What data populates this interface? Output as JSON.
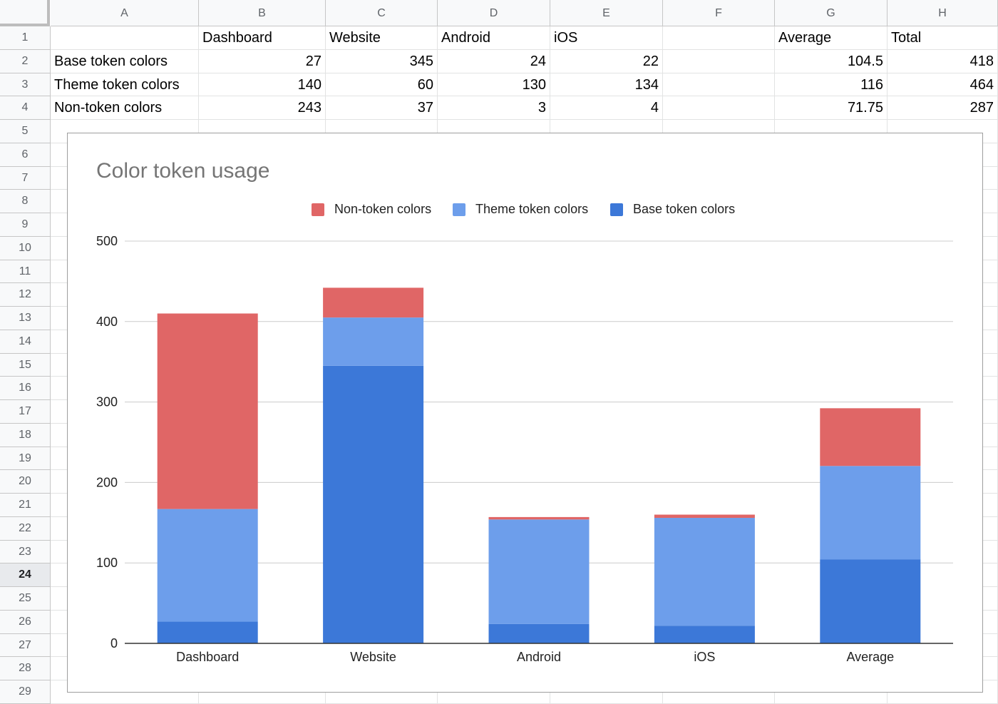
{
  "sheet": {
    "columns": [
      "A",
      "B",
      "C",
      "D",
      "E",
      "F",
      "G",
      "H"
    ],
    "rows": [
      "1",
      "2",
      "3",
      "4",
      "5",
      "6",
      "7",
      "8",
      "9",
      "10",
      "11",
      "12",
      "13",
      "14",
      "15",
      "16",
      "17",
      "18",
      "19",
      "20",
      "21",
      "22",
      "23",
      "24",
      "25",
      "26",
      "27",
      "28",
      "29"
    ],
    "selected_row": "24",
    "header_cells": [
      "",
      "Dashboard",
      "Website",
      "Android",
      "iOS",
      "",
      "Average",
      "Total"
    ],
    "data_rows": [
      [
        "Base token colors",
        "27",
        "345",
        "24",
        "22",
        "",
        "104.5",
        "418"
      ],
      [
        "Theme token colors",
        "140",
        "60",
        "130",
        "134",
        "",
        "116",
        "464"
      ],
      [
        "Non-token colors",
        "243",
        "37",
        "3",
        "4",
        "",
        "71.75",
        "287"
      ]
    ]
  },
  "chart_data": {
    "type": "bar",
    "stacked": true,
    "title": "Color token usage",
    "xlabel": "",
    "ylabel": "",
    "categories": [
      "Dashboard",
      "Website",
      "Android",
      "iOS",
      "Average"
    ],
    "series": [
      {
        "name": "Base token colors",
        "color": "#3c78d8",
        "values": [
          27,
          345,
          24,
          22,
          104.5
        ]
      },
      {
        "name": "Theme token colors",
        "color": "#6d9eeb",
        "values": [
          140,
          60,
          130,
          134,
          116
        ]
      },
      {
        "name": "Non-token colors",
        "color": "#e06666",
        "values": [
          243,
          37,
          3,
          4,
          71.75
        ]
      }
    ],
    "legend_order": [
      "Non-token colors",
      "Theme token colors",
      "Base token colors"
    ],
    "legend_position": "top",
    "ylim": [
      0,
      500
    ],
    "yticks": [
      "0",
      "100",
      "200",
      "300",
      "400",
      "500"
    ],
    "grid": true
  }
}
